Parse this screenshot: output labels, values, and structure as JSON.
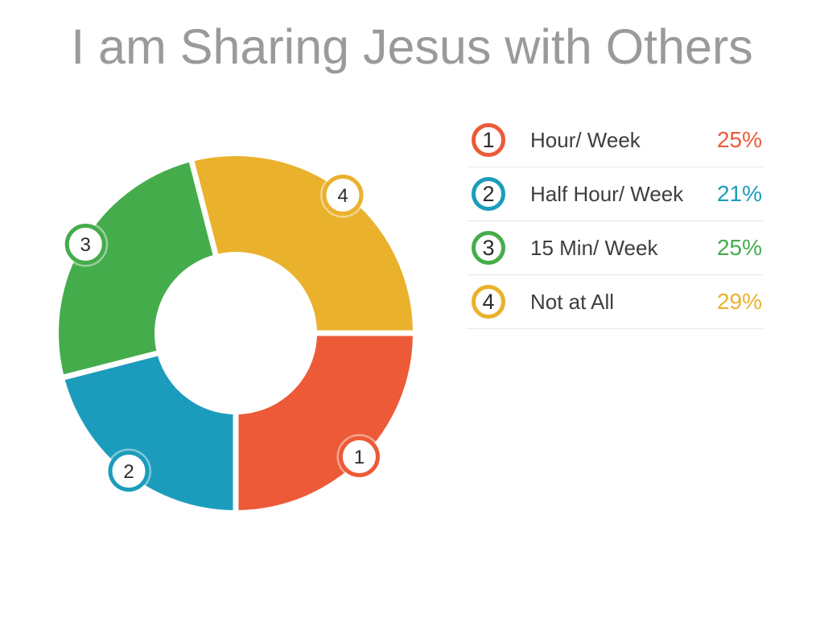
{
  "title": "I am Sharing Jesus with Others",
  "chart_data": {
    "type": "pie",
    "subtype": "donut",
    "title": "I am Sharing Jesus with Others",
    "categories": [
      "Hour/ Week",
      "Half Hour/ Week",
      "15 Min/ Week",
      "Not at All"
    ],
    "values": [
      25,
      21,
      25,
      29
    ],
    "unit": "%",
    "segment_numbers": [
      "1",
      "2",
      "3",
      "4"
    ],
    "colors": [
      "#EC5A38",
      "#1C9CBC",
      "#45AC4C",
      "#EAB12C"
    ],
    "start_angle_deg": 0,
    "direction": "clockwise",
    "inner_radius_ratio": 0.46,
    "segment_gap": true,
    "legend_position": "right"
  },
  "legend": {
    "items": [
      {
        "number": "1",
        "label": "Hour/ Week",
        "percent": "25%",
        "color": "#EC5A38"
      },
      {
        "number": "2",
        "label": "Half Hour/ Week",
        "percent": "21%",
        "color": "#1C9CBC"
      },
      {
        "number": "3",
        "label": "15 Min/ Week",
        "percent": "25%",
        "color": "#45AC4C"
      },
      {
        "number": "4",
        "label": "Not at All",
        "percent": "29%",
        "color": "#EAB12C"
      }
    ]
  },
  "style": {
    "background": "#FFFFFF",
    "title_color": "#9A9A9A",
    "label_color": "#3E3E3E",
    "divider_color": "#E7E7E7",
    "badge_number_color": "#2B2B2B"
  }
}
